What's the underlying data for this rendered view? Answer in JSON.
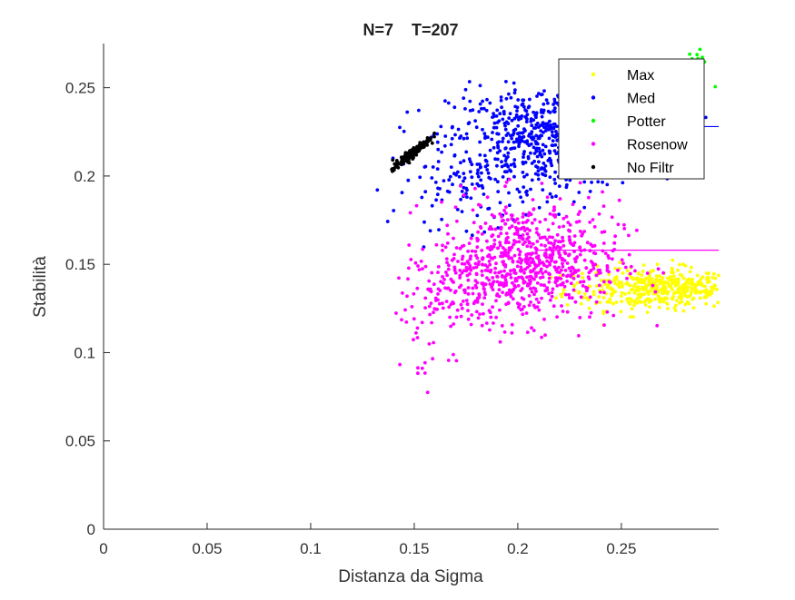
{
  "chart_data": {
    "type": "scatter",
    "title": "N=7    T=207",
    "xlabel": "Distanza da Sigma",
    "ylabel": "Stabilità",
    "xlim": [
      0,
      0.297
    ],
    "ylim": [
      0,
      0.275
    ],
    "xticks": [
      0,
      0.05,
      0.1,
      0.15,
      0.2,
      0.25
    ],
    "yticks": [
      0,
      0.05,
      0.1,
      0.15,
      0.2,
      0.25
    ],
    "xtick_labels": [
      "0",
      "0.05",
      "0.1",
      "0.15",
      "0.2",
      "0.25"
    ],
    "ytick_labels": [
      "0",
      "0.05",
      "0.1",
      "0.15",
      "0.2",
      "0.25"
    ],
    "grid": false,
    "legend_position": "top-right",
    "series": [
      {
        "name": "Max",
        "color": "#ffff00",
        "clusters": [
          {
            "cx": 0.262,
            "cy": 0.136,
            "sx": 0.02,
            "sy": 0.006,
            "n": 320,
            "xmin": 0.205,
            "xmax": 0.297
          },
          {
            "cx": 0.28,
            "cy": 0.136,
            "sx": 0.012,
            "sy": 0.005,
            "n": 120,
            "xmin": 0.25,
            "xmax": 0.297
          }
        ]
      },
      {
        "name": "Med",
        "color": "#0000ff",
        "clusters": [
          {
            "cx": 0.215,
            "cy": 0.222,
            "sx": 0.024,
            "sy": 0.014,
            "n": 640,
            "xmin": 0.13,
            "xmax": 0.297
          },
          {
            "cx": 0.18,
            "cy": 0.195,
            "sx": 0.02,
            "sy": 0.012,
            "n": 120,
            "xmin": 0.13,
            "xmax": 0.297
          }
        ],
        "mean_line": {
          "x0": 0.215,
          "x1": 0.297,
          "y": 0.228
        }
      },
      {
        "name": "Potter",
        "color": "#00ff00",
        "clusters": [
          {
            "cx": 0.288,
            "cy": 0.262,
            "sx": 0.005,
            "sy": 0.007,
            "n": 12,
            "xmin": 0.27,
            "xmax": 0.297
          }
        ]
      },
      {
        "name": "Rosenow",
        "color": "#ff00ff",
        "clusters": [
          {
            "cx": 0.205,
            "cy": 0.152,
            "sx": 0.022,
            "sy": 0.017,
            "n": 720,
            "xmin": 0.14,
            "xmax": 0.297
          },
          {
            "cx": 0.172,
            "cy": 0.135,
            "sx": 0.014,
            "sy": 0.01,
            "n": 120,
            "xmin": 0.14,
            "xmax": 0.297
          },
          {
            "cx": 0.152,
            "cy": 0.105,
            "sx": 0.009,
            "sy": 0.015,
            "n": 22,
            "xmin": 0.14,
            "xmax": 0.2
          }
        ],
        "mean_line": {
          "x0": 0.21,
          "x1": 0.297,
          "y": 0.158
        }
      },
      {
        "name": "No Filtr",
        "color": "#000000",
        "clusters": [
          {
            "cx": 0.1485,
            "cy": 0.2125,
            "sx": 0.0045,
            "sy": 0.0045,
            "n": 170,
            "xmin": 0.136,
            "xmax": 0.16,
            "corr": 0.95
          }
        ]
      }
    ]
  }
}
